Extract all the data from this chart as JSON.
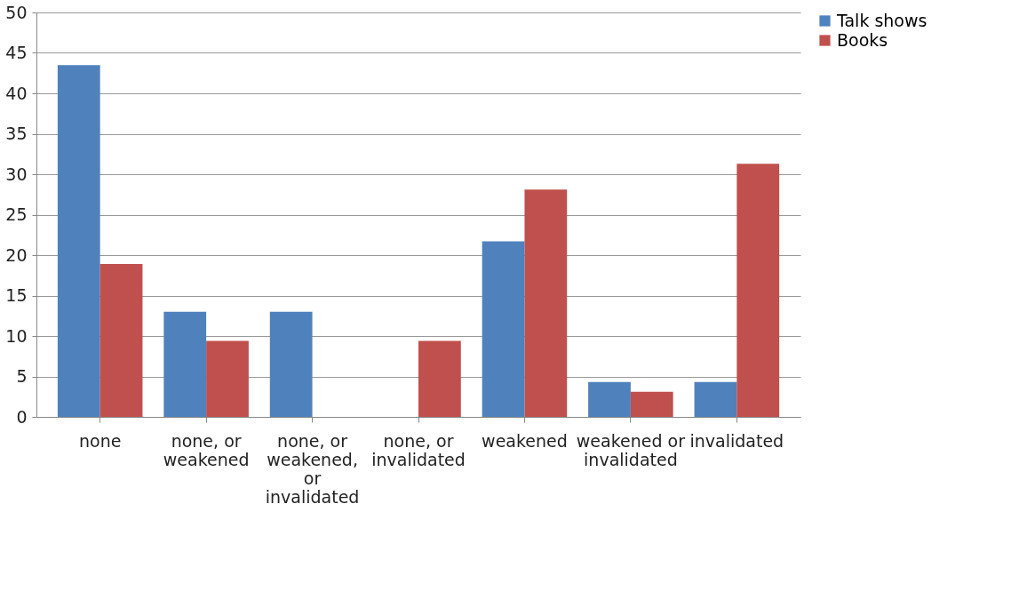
{
  "chart_data": {
    "type": "bar",
    "categories": [
      "none",
      "none, or weakened",
      "none, or weakened, or invalidated",
      "none, or invalidated",
      "weakened",
      "weakened or invalidated",
      "invalidated"
    ],
    "series": [
      {
        "name": "Talk shows",
        "color": "#4f81bd",
        "values": [
          43.5,
          13.0,
          13.0,
          0,
          21.7,
          4.3,
          4.3
        ]
      },
      {
        "name": "Books",
        "color": "#c0504d",
        "values": [
          18.9,
          9.4,
          0,
          9.4,
          28.1,
          3.1,
          31.3
        ]
      }
    ],
    "ylim": [
      0,
      50
    ],
    "yticks": [
      0,
      5,
      10,
      15,
      20,
      25,
      30,
      35,
      40,
      45,
      50
    ],
    "grid": "y",
    "legend": "right"
  }
}
